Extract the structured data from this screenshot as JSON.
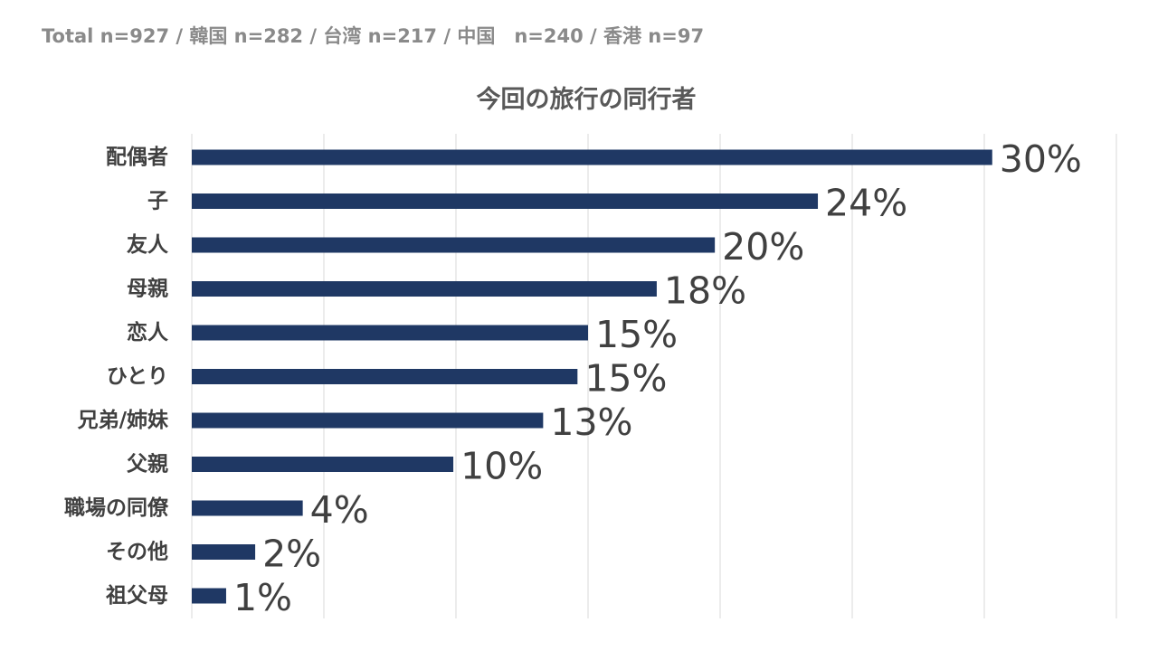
{
  "header": {
    "sample_note": "Total n=927 / 韓国 n=282 / 台湾 n=217 / 中国　n=240 / 香港 n=97"
  },
  "colors": {
    "bar": "#1f3864",
    "grid": "#d9d9d9",
    "text": "#404040"
  },
  "chart_data": {
    "type": "bar",
    "orientation": "horizontal",
    "title": "今回の旅行の同行者",
    "xlabel": "",
    "ylabel": "",
    "xlim": [
      0,
      35
    ],
    "grid": true,
    "legend": "none",
    "categories": [
      "配偶者",
      "子",
      "友人",
      "母親",
      "恋人",
      "ひとり",
      "兄弟/姉妹",
      "父親",
      "職場の同僚",
      "その他",
      "祖父母"
    ],
    "values": [
      30.3,
      23.7,
      19.8,
      17.6,
      15.0,
      14.6,
      13.3,
      9.9,
      4.2,
      2.4,
      1.3
    ],
    "data_labels": [
      "30%",
      "24%",
      "20%",
      "18%",
      "15%",
      "15%",
      "13%",
      "10%",
      "4%",
      "2%",
      "1%"
    ]
  }
}
